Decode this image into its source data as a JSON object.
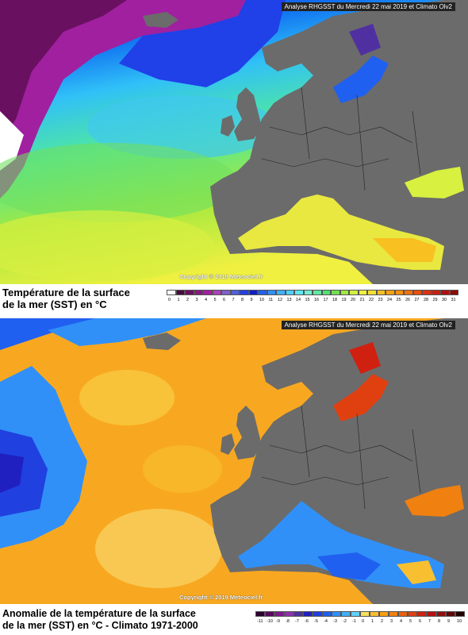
{
  "maps": [
    {
      "banner": "Analyse RHGSST  du Mercredi 22 mai 2019 et Climato Olv2",
      "copyright": "Copyright © 2019 Meteociel.fr",
      "legend_title_line1": "Température de la surface",
      "legend_title_line2": "de la mer (SST) en °C",
      "scale_ticks": [
        "0",
        "1",
        "2",
        "3",
        "4",
        "5",
        "6",
        "7",
        "8",
        "9",
        "10",
        "11",
        "12",
        "13",
        "14",
        "15",
        "16",
        "17",
        "18",
        "19",
        "20",
        "21",
        "22",
        "23",
        "24",
        "25",
        "26",
        "27",
        "28",
        "29",
        "30",
        "31"
      ],
      "scale_colors": [
        "#ffffff",
        "#4a0a3e",
        "#6a1060",
        "#8a1880",
        "#a020a0",
        "#b040b8",
        "#8060c8",
        "#5060d8",
        "#2040e8",
        "#1020c0",
        "#2060f0",
        "#3090f8",
        "#40b0f8",
        "#50d0f8",
        "#60e8f0",
        "#70f0d0",
        "#60e8a0",
        "#50e070",
        "#70e050",
        "#a0e840",
        "#d0f040",
        "#f0f040",
        "#f8e030",
        "#f8c020",
        "#f8a010",
        "#f89010",
        "#f07010",
        "#e85010",
        "#e03010",
        "#c82010",
        "#b01010",
        "#900808"
      ]
    },
    {
      "banner": "Analyse RHGSST  du Mercredi 22 mai 2019 et Climato Olv2",
      "copyright": "Copyright © 2019 Meteociel.fr",
      "legend_title_line1": "Anomalie de la température de la surface",
      "legend_title_line2": "de la mer (SST) en °C - Climato 1971-2000",
      "scale_ticks": [
        "-11",
        "-10",
        "-9",
        "-8",
        "-7",
        "-6",
        "-5",
        "-4",
        "-3",
        "-2",
        "-1",
        "0",
        "1",
        "2",
        "3",
        "4",
        "5",
        "6",
        "7",
        "8",
        "9",
        "10"
      ],
      "scale_colors": [
        "#2a0030",
        "#5a0860",
        "#801890",
        "#9030b0",
        "#5030a0",
        "#2020c0",
        "#2040e0",
        "#2060f0",
        "#3090f8",
        "#40b0f8",
        "#60d0f8",
        "#f8e060",
        "#f8c030",
        "#f8a010",
        "#f08010",
        "#e86010",
        "#e04010",
        "#d02010",
        "#b81010",
        "#901010",
        "#600808",
        "#200000"
      ]
    }
  ]
}
